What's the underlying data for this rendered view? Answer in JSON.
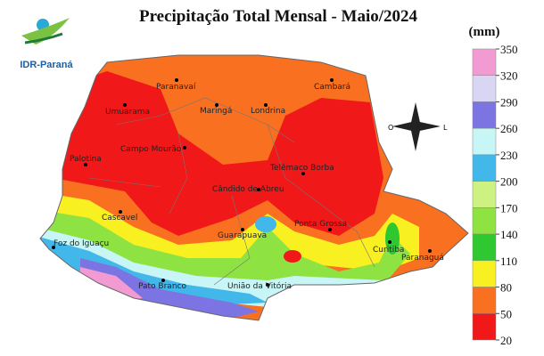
{
  "title": "Precipitação Total Mensal - Maio/2024",
  "unit": "(mm)",
  "logo": {
    "name": "IDR-Paraná"
  },
  "compass": {
    "west": "O",
    "east": "L"
  },
  "legend": {
    "ticks": [
      350,
      320,
      290,
      260,
      230,
      200,
      170,
      140,
      110,
      80,
      50,
      20
    ],
    "colors": [
      "#f29ad2",
      "#d8d6f2",
      "#7c74e2",
      "#c8f6f6",
      "#42b8ea",
      "#cef282",
      "#8ee242",
      "#30c830",
      "#f8f020",
      "#f87020",
      "#f01818"
    ]
  },
  "cities": [
    "Paranavaí",
    "Cambará",
    "Umuarama",
    "Maringá",
    "Londrina",
    "Campo Mourão",
    "Palotina",
    "Telêmaco Borba",
    "Cândido de Abreu",
    "Cascavel",
    "Ponta Grossa",
    "Guarapuava",
    "Foz do Iguaçu",
    "Curitiba",
    "Paranaguá",
    "Pato Branco",
    "União da Vitória"
  ]
}
